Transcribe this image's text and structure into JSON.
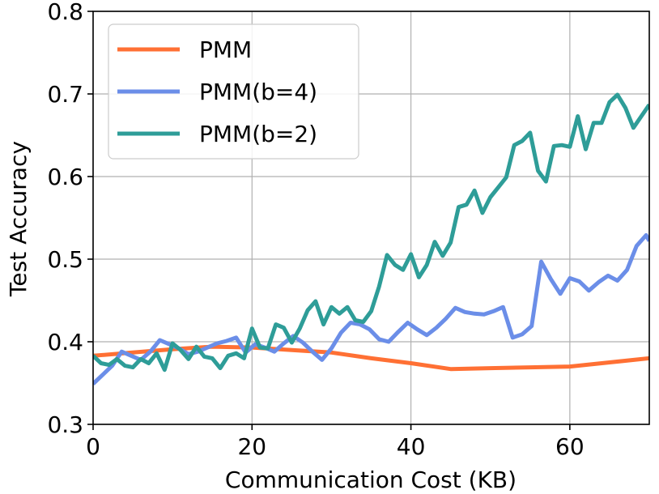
{
  "chart_data": {
    "type": "line",
    "xlabel": "Communication Cost (KB)",
    "ylabel": "Test Accuracy",
    "xlim": [
      0,
      70
    ],
    "ylim": [
      0.3,
      0.8
    ],
    "xticks": [
      0,
      20,
      40,
      60
    ],
    "yticks": [
      0.3,
      0.4,
      0.5,
      0.6,
      0.7,
      0.8
    ],
    "xtick_labels": [
      "0",
      "20",
      "40",
      "60"
    ],
    "ytick_labels": [
      "0.3",
      "0.4",
      "0.5",
      "0.6",
      "0.7",
      "0.8"
    ],
    "grid": true,
    "legend_position": "top-left",
    "series": [
      {
        "name": "PMM",
        "color": "#ff7034",
        "points": [
          [
            0,
            0.383
          ],
          [
            5,
            0.387
          ],
          [
            10,
            0.391
          ],
          [
            15,
            0.394
          ],
          [
            20,
            0.393
          ],
          [
            25,
            0.39
          ],
          [
            30,
            0.387
          ],
          [
            35,
            0.38
          ],
          [
            40,
            0.374
          ],
          [
            45,
            0.367
          ],
          [
            50,
            0.368
          ],
          [
            55,
            0.369
          ],
          [
            60,
            0.37
          ],
          [
            65,
            0.375
          ],
          [
            70,
            0.38
          ]
        ]
      },
      {
        "name": "PMM(b=4)",
        "color": "#6b8ee8",
        "points": [
          [
            0,
            0.349
          ],
          [
            1.2,
            0.36
          ],
          [
            2.4,
            0.371
          ],
          [
            3.6,
            0.388
          ],
          [
            4.8,
            0.383
          ],
          [
            6,
            0.378
          ],
          [
            7.2,
            0.388
          ],
          [
            8.4,
            0.402
          ],
          [
            9.6,
            0.397
          ],
          [
            10.8,
            0.392
          ],
          [
            12,
            0.385
          ],
          [
            13.2,
            0.388
          ],
          [
            14.4,
            0.393
          ],
          [
            15.6,
            0.398
          ],
          [
            16.8,
            0.401
          ],
          [
            18,
            0.405
          ],
          [
            19.2,
            0.387
          ],
          [
            20.4,
            0.397
          ],
          [
            21.6,
            0.393
          ],
          [
            22.8,
            0.388
          ],
          [
            24,
            0.398
          ],
          [
            25.2,
            0.407
          ],
          [
            26.4,
            0.399
          ],
          [
            27.6,
            0.388
          ],
          [
            28.8,
            0.378
          ],
          [
            30,
            0.392
          ],
          [
            31.2,
            0.411
          ],
          [
            32.4,
            0.423
          ],
          [
            33.6,
            0.421
          ],
          [
            34.8,
            0.415
          ],
          [
            36,
            0.403
          ],
          [
            37.2,
            0.4
          ],
          [
            38.4,
            0.412
          ],
          [
            39.6,
            0.423
          ],
          [
            40.8,
            0.415
          ],
          [
            42,
            0.408
          ],
          [
            43.2,
            0.417
          ],
          [
            44.4,
            0.428
          ],
          [
            45.6,
            0.441
          ],
          [
            46.8,
            0.436
          ],
          [
            48,
            0.434
          ],
          [
            49.2,
            0.433
          ],
          [
            50.4,
            0.437
          ],
          [
            51.6,
            0.442
          ],
          [
            52.8,
            0.405
          ],
          [
            54,
            0.409
          ],
          [
            55.2,
            0.419
          ],
          [
            56.4,
            0.497
          ],
          [
            57.6,
            0.476
          ],
          [
            58.8,
            0.458
          ],
          [
            60,
            0.477
          ],
          [
            61.2,
            0.473
          ],
          [
            62.4,
            0.462
          ],
          [
            63.6,
            0.472
          ],
          [
            64.8,
            0.48
          ],
          [
            66,
            0.474
          ],
          [
            67.2,
            0.487
          ],
          [
            68.4,
            0.516
          ],
          [
            69.6,
            0.529
          ],
          [
            70,
            0.522
          ]
        ]
      },
      {
        "name": "PMM(b=2)",
        "color": "#2e9d98",
        "points": [
          [
            0,
            0.383
          ],
          [
            1,
            0.374
          ],
          [
            2,
            0.372
          ],
          [
            3,
            0.379
          ],
          [
            4,
            0.371
          ],
          [
            5,
            0.369
          ],
          [
            6,
            0.379
          ],
          [
            7,
            0.374
          ],
          [
            8,
            0.386
          ],
          [
            9,
            0.366
          ],
          [
            10,
            0.398
          ],
          [
            11,
            0.39
          ],
          [
            12,
            0.379
          ],
          [
            13,
            0.394
          ],
          [
            14,
            0.382
          ],
          [
            15,
            0.38
          ],
          [
            16,
            0.368
          ],
          [
            17,
            0.383
          ],
          [
            18,
            0.386
          ],
          [
            19,
            0.38
          ],
          [
            20,
            0.416
          ],
          [
            21,
            0.393
          ],
          [
            22,
            0.392
          ],
          [
            23,
            0.421
          ],
          [
            24,
            0.417
          ],
          [
            25,
            0.399
          ],
          [
            26,
            0.416
          ],
          [
            27,
            0.438
          ],
          [
            28,
            0.449
          ],
          [
            29,
            0.421
          ],
          [
            30,
            0.442
          ],
          [
            31,
            0.434
          ],
          [
            32,
            0.442
          ],
          [
            33,
            0.426
          ],
          [
            34,
            0.424
          ],
          [
            35,
            0.437
          ],
          [
            36,
            0.467
          ],
          [
            37,
            0.505
          ],
          [
            38,
            0.493
          ],
          [
            39,
            0.487
          ],
          [
            40,
            0.506
          ],
          [
            41,
            0.478
          ],
          [
            42,
            0.493
          ],
          [
            43,
            0.521
          ],
          [
            44,
            0.504
          ],
          [
            45,
            0.52
          ],
          [
            46,
            0.563
          ],
          [
            47,
            0.566
          ],
          [
            48,
            0.583
          ],
          [
            49,
            0.556
          ],
          [
            50,
            0.575
          ],
          [
            51,
            0.587
          ],
          [
            52,
            0.599
          ],
          [
            53,
            0.638
          ],
          [
            54,
            0.643
          ],
          [
            55,
            0.653
          ],
          [
            56,
            0.607
          ],
          [
            57,
            0.594
          ],
          [
            58,
            0.637
          ],
          [
            59,
            0.638
          ],
          [
            60,
            0.636
          ],
          [
            61,
            0.673
          ],
          [
            62,
            0.633
          ],
          [
            63,
            0.665
          ],
          [
            64,
            0.665
          ],
          [
            65,
            0.69
          ],
          [
            66,
            0.699
          ],
          [
            67,
            0.683
          ],
          [
            68,
            0.659
          ],
          [
            69,
            0.673
          ],
          [
            70,
            0.687
          ]
        ]
      }
    ]
  }
}
